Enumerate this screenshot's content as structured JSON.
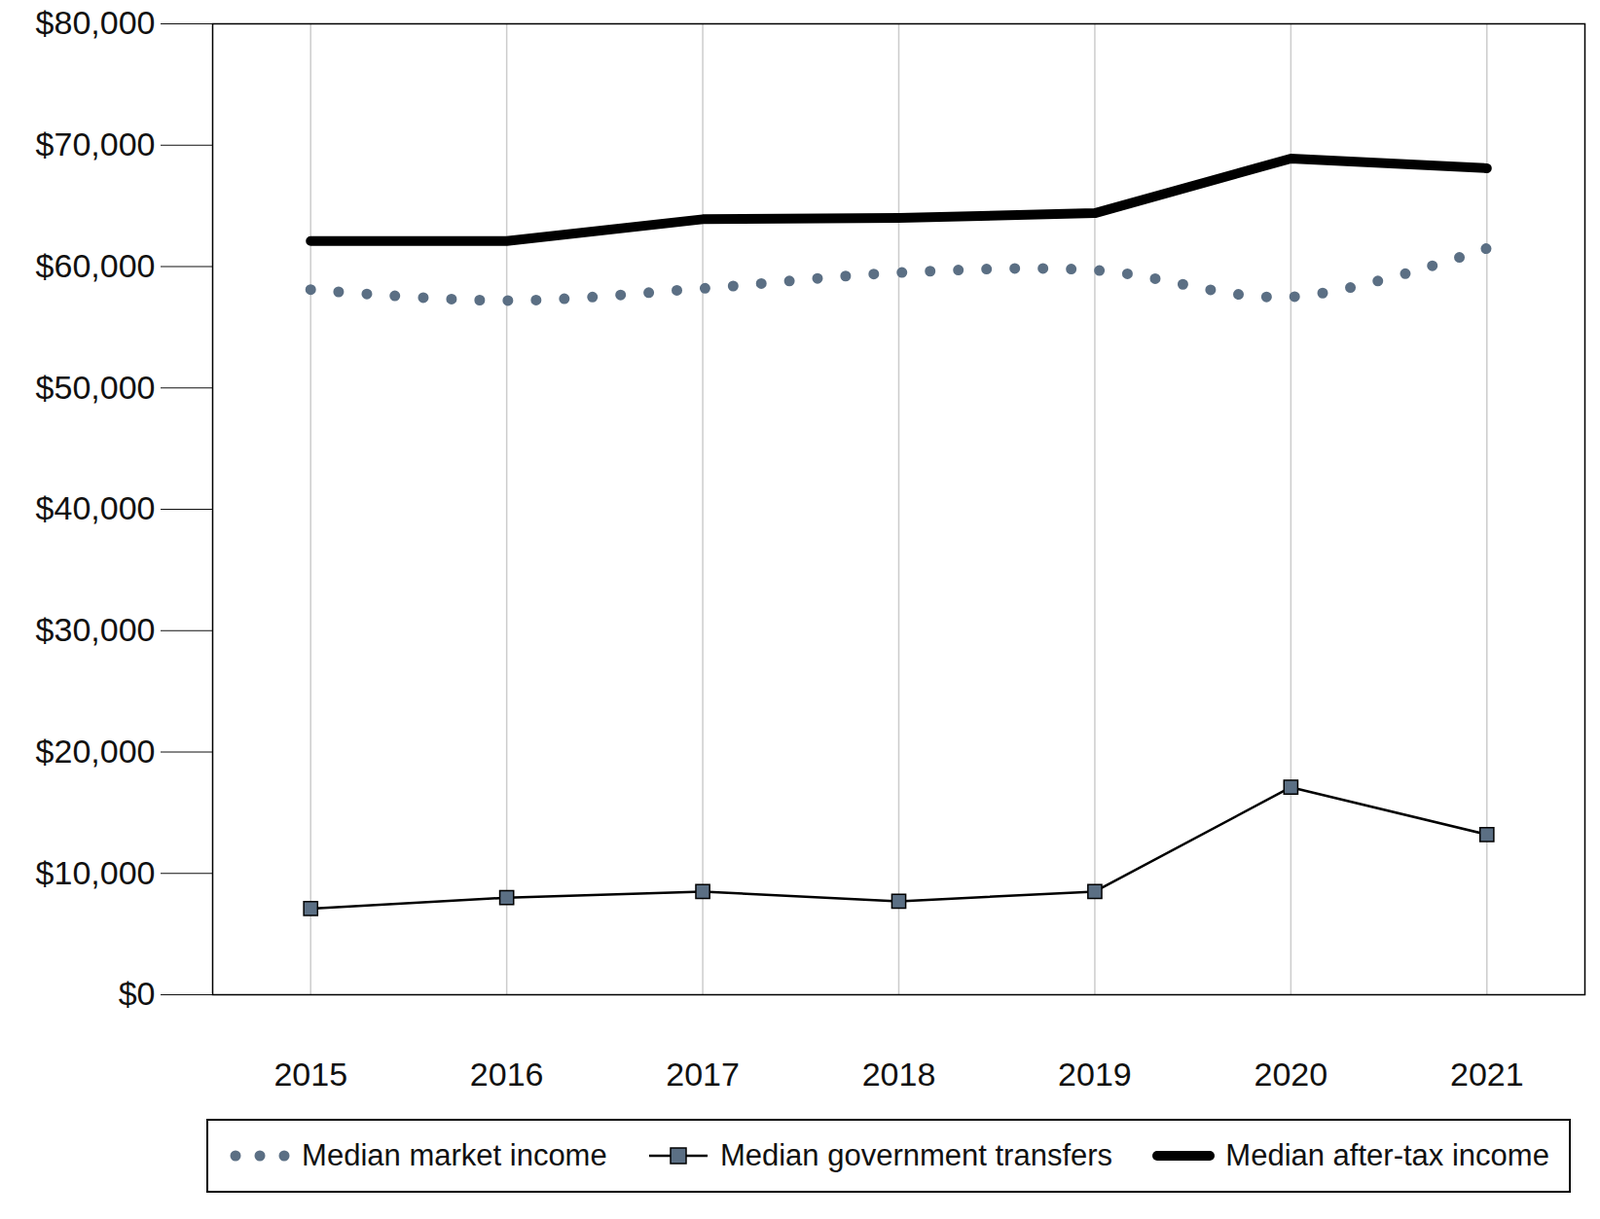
{
  "chart_data": {
    "type": "line",
    "x": [
      2015,
      2016,
      2017,
      2018,
      2019,
      2020,
      2021
    ],
    "xlim": [
      2014.5,
      2021.5
    ],
    "xticks": [
      2015,
      2016,
      2017,
      2018,
      2019,
      2020,
      2021
    ],
    "ylim": [
      0,
      80000
    ],
    "yticks": [
      {
        "value": 0,
        "label": "$0"
      },
      {
        "value": 10000,
        "label": "$10,000"
      },
      {
        "value": 20000,
        "label": "$20,000"
      },
      {
        "value": 30000,
        "label": "$30,000"
      },
      {
        "value": 40000,
        "label": "$40,000"
      },
      {
        "value": 50000,
        "label": "$50,000"
      },
      {
        "value": 60000,
        "label": "$60,000"
      },
      {
        "value": 70000,
        "label": "$70,000"
      },
      {
        "value": 80000,
        "label": "$80,000"
      }
    ],
    "grid": true,
    "legend": "bottom",
    "series": [
      {
        "name": "Median market income",
        "color": "#5b6f84",
        "line_style": "dotted",
        "values": [
          58100,
          57200,
          58200,
          59500,
          59700,
          57500,
          61500
        ]
      },
      {
        "name": "Median government transfers",
        "color": "#5b6f84",
        "marker": "square",
        "values": [
          7100,
          8000,
          8500,
          7700,
          8500,
          17100,
          13200
        ]
      },
      {
        "name": "Median after-tax income",
        "color": "#000000",
        "line_style": "solid",
        "values": [
          62100,
          62100,
          63900,
          64000,
          64400,
          68900,
          68100
        ]
      }
    ]
  }
}
